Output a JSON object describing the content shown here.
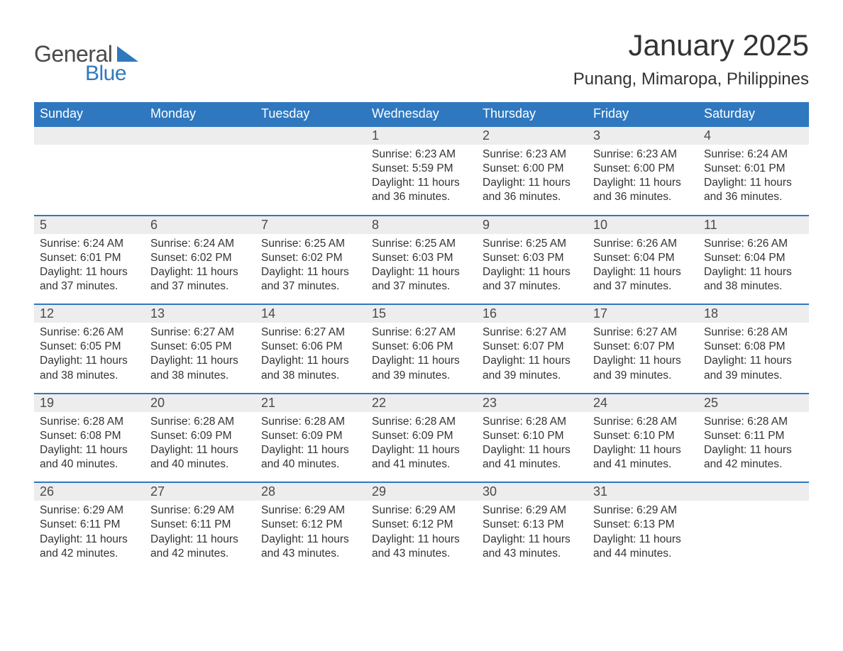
{
  "logo": {
    "main": "General",
    "sub": "Blue",
    "tri_color": "#2f78bf"
  },
  "title": "January 2025",
  "location": "Punang, Mimaropa, Philippines",
  "colors": {
    "header_bg": "#2f78bf",
    "header_text": "#ffffff",
    "daynum_bg": "#ededed",
    "daynum_border": "#2f78bf",
    "body_text": "#333333",
    "background": "#ffffff"
  },
  "typography": {
    "title_fontsize": 42,
    "location_fontsize": 24,
    "header_fontsize": 18,
    "daynum_fontsize": 18,
    "body_fontsize": 15.5
  },
  "day_labels": [
    "Sunday",
    "Monday",
    "Tuesday",
    "Wednesday",
    "Thursday",
    "Friday",
    "Saturday"
  ],
  "weeks": [
    [
      {
        "num": "",
        "sunrise": "",
        "sunset": "",
        "daylight": ""
      },
      {
        "num": "",
        "sunrise": "",
        "sunset": "",
        "daylight": ""
      },
      {
        "num": "",
        "sunrise": "",
        "sunset": "",
        "daylight": ""
      },
      {
        "num": "1",
        "sunrise": "Sunrise: 6:23 AM",
        "sunset": "Sunset: 5:59 PM",
        "daylight": "Daylight: 11 hours and 36 minutes."
      },
      {
        "num": "2",
        "sunrise": "Sunrise: 6:23 AM",
        "sunset": "Sunset: 6:00 PM",
        "daylight": "Daylight: 11 hours and 36 minutes."
      },
      {
        "num": "3",
        "sunrise": "Sunrise: 6:23 AM",
        "sunset": "Sunset: 6:00 PM",
        "daylight": "Daylight: 11 hours and 36 minutes."
      },
      {
        "num": "4",
        "sunrise": "Sunrise: 6:24 AM",
        "sunset": "Sunset: 6:01 PM",
        "daylight": "Daylight: 11 hours and 36 minutes."
      }
    ],
    [
      {
        "num": "5",
        "sunrise": "Sunrise: 6:24 AM",
        "sunset": "Sunset: 6:01 PM",
        "daylight": "Daylight: 11 hours and 37 minutes."
      },
      {
        "num": "6",
        "sunrise": "Sunrise: 6:24 AM",
        "sunset": "Sunset: 6:02 PM",
        "daylight": "Daylight: 11 hours and 37 minutes."
      },
      {
        "num": "7",
        "sunrise": "Sunrise: 6:25 AM",
        "sunset": "Sunset: 6:02 PM",
        "daylight": "Daylight: 11 hours and 37 minutes."
      },
      {
        "num": "8",
        "sunrise": "Sunrise: 6:25 AM",
        "sunset": "Sunset: 6:03 PM",
        "daylight": "Daylight: 11 hours and 37 minutes."
      },
      {
        "num": "9",
        "sunrise": "Sunrise: 6:25 AM",
        "sunset": "Sunset: 6:03 PM",
        "daylight": "Daylight: 11 hours and 37 minutes."
      },
      {
        "num": "10",
        "sunrise": "Sunrise: 6:26 AM",
        "sunset": "Sunset: 6:04 PM",
        "daylight": "Daylight: 11 hours and 37 minutes."
      },
      {
        "num": "11",
        "sunrise": "Sunrise: 6:26 AM",
        "sunset": "Sunset: 6:04 PM",
        "daylight": "Daylight: 11 hours and 38 minutes."
      }
    ],
    [
      {
        "num": "12",
        "sunrise": "Sunrise: 6:26 AM",
        "sunset": "Sunset: 6:05 PM",
        "daylight": "Daylight: 11 hours and 38 minutes."
      },
      {
        "num": "13",
        "sunrise": "Sunrise: 6:27 AM",
        "sunset": "Sunset: 6:05 PM",
        "daylight": "Daylight: 11 hours and 38 minutes."
      },
      {
        "num": "14",
        "sunrise": "Sunrise: 6:27 AM",
        "sunset": "Sunset: 6:06 PM",
        "daylight": "Daylight: 11 hours and 38 minutes."
      },
      {
        "num": "15",
        "sunrise": "Sunrise: 6:27 AM",
        "sunset": "Sunset: 6:06 PM",
        "daylight": "Daylight: 11 hours and 39 minutes."
      },
      {
        "num": "16",
        "sunrise": "Sunrise: 6:27 AM",
        "sunset": "Sunset: 6:07 PM",
        "daylight": "Daylight: 11 hours and 39 minutes."
      },
      {
        "num": "17",
        "sunrise": "Sunrise: 6:27 AM",
        "sunset": "Sunset: 6:07 PM",
        "daylight": "Daylight: 11 hours and 39 minutes."
      },
      {
        "num": "18",
        "sunrise": "Sunrise: 6:28 AM",
        "sunset": "Sunset: 6:08 PM",
        "daylight": "Daylight: 11 hours and 39 minutes."
      }
    ],
    [
      {
        "num": "19",
        "sunrise": "Sunrise: 6:28 AM",
        "sunset": "Sunset: 6:08 PM",
        "daylight": "Daylight: 11 hours and 40 minutes."
      },
      {
        "num": "20",
        "sunrise": "Sunrise: 6:28 AM",
        "sunset": "Sunset: 6:09 PM",
        "daylight": "Daylight: 11 hours and 40 minutes."
      },
      {
        "num": "21",
        "sunrise": "Sunrise: 6:28 AM",
        "sunset": "Sunset: 6:09 PM",
        "daylight": "Daylight: 11 hours and 40 minutes."
      },
      {
        "num": "22",
        "sunrise": "Sunrise: 6:28 AM",
        "sunset": "Sunset: 6:09 PM",
        "daylight": "Daylight: 11 hours and 41 minutes."
      },
      {
        "num": "23",
        "sunrise": "Sunrise: 6:28 AM",
        "sunset": "Sunset: 6:10 PM",
        "daylight": "Daylight: 11 hours and 41 minutes."
      },
      {
        "num": "24",
        "sunrise": "Sunrise: 6:28 AM",
        "sunset": "Sunset: 6:10 PM",
        "daylight": "Daylight: 11 hours and 41 minutes."
      },
      {
        "num": "25",
        "sunrise": "Sunrise: 6:28 AM",
        "sunset": "Sunset: 6:11 PM",
        "daylight": "Daylight: 11 hours and 42 minutes."
      }
    ],
    [
      {
        "num": "26",
        "sunrise": "Sunrise: 6:29 AM",
        "sunset": "Sunset: 6:11 PM",
        "daylight": "Daylight: 11 hours and 42 minutes."
      },
      {
        "num": "27",
        "sunrise": "Sunrise: 6:29 AM",
        "sunset": "Sunset: 6:11 PM",
        "daylight": "Daylight: 11 hours and 42 minutes."
      },
      {
        "num": "28",
        "sunrise": "Sunrise: 6:29 AM",
        "sunset": "Sunset: 6:12 PM",
        "daylight": "Daylight: 11 hours and 43 minutes."
      },
      {
        "num": "29",
        "sunrise": "Sunrise: 6:29 AM",
        "sunset": "Sunset: 6:12 PM",
        "daylight": "Daylight: 11 hours and 43 minutes."
      },
      {
        "num": "30",
        "sunrise": "Sunrise: 6:29 AM",
        "sunset": "Sunset: 6:13 PM",
        "daylight": "Daylight: 11 hours and 43 minutes."
      },
      {
        "num": "31",
        "sunrise": "Sunrise: 6:29 AM",
        "sunset": "Sunset: 6:13 PM",
        "daylight": "Daylight: 11 hours and 44 minutes."
      },
      {
        "num": "",
        "sunrise": "",
        "sunset": "",
        "daylight": ""
      }
    ]
  ]
}
